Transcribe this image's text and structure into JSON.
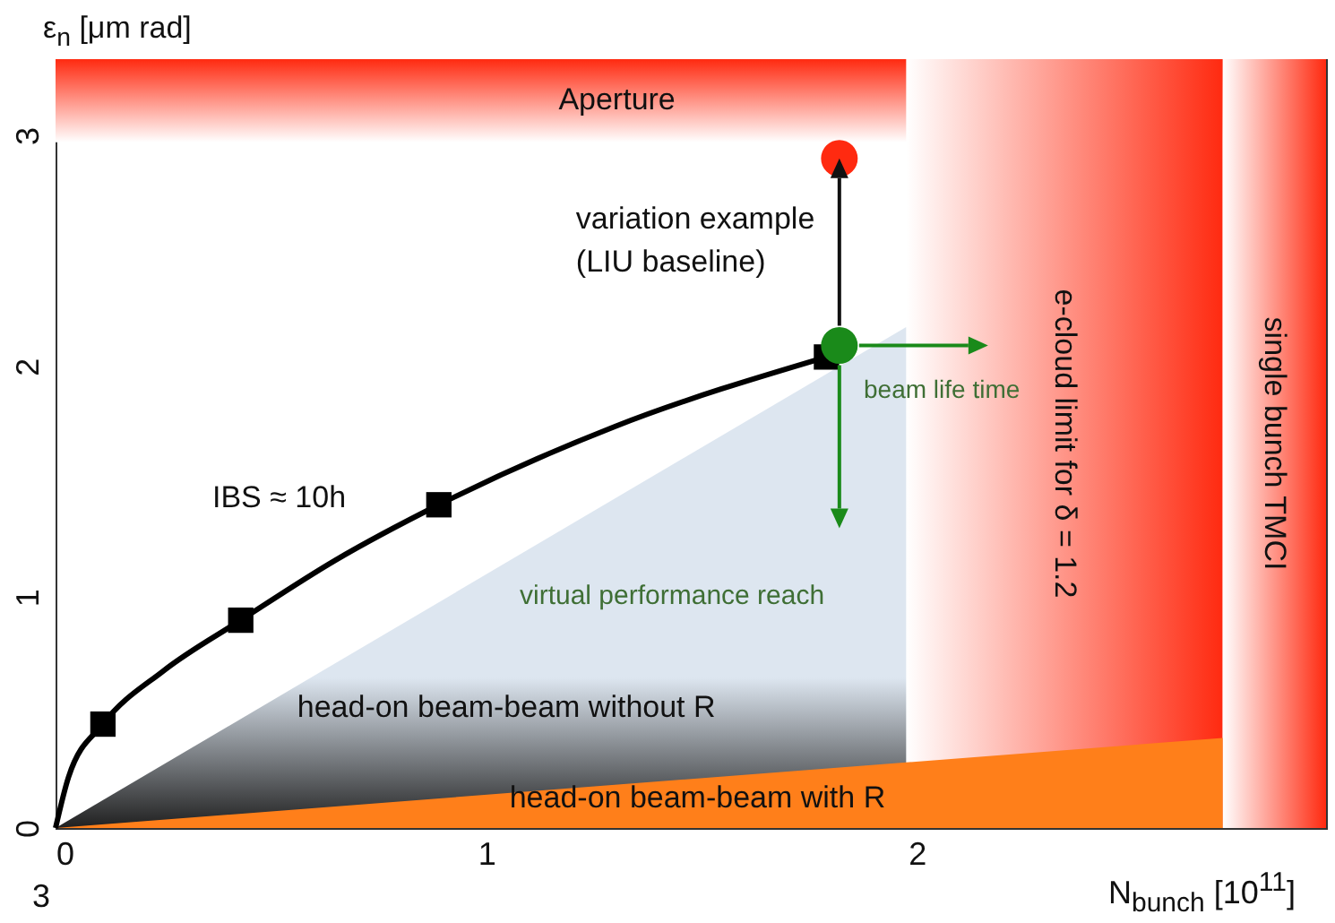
{
  "chart_data": {
    "type": "line",
    "xlabel": "N$_{bunch}$ [10$^{11}$]",
    "ylabel": "ε$_{n}$ [μm rad]",
    "xlim": [
      0,
      2.95
    ],
    "ylim": [
      0,
      3.33
    ],
    "xticks": [
      0,
      1,
      2
    ],
    "yticks": [
      0,
      1,
      2,
      3
    ],
    "grid": false,
    "legend": false,
    "bands": [
      {
        "axis": "y",
        "from": 2.97,
        "to": 3.33,
        "label": "Aperture",
        "color": "#ff2a10"
      },
      {
        "axis": "x",
        "from": 1.975,
        "to": 2.71,
        "label": "e-cloud limit for δ = 1.2",
        "color": "#ff2a10"
      },
      {
        "axis": "x",
        "from": 2.71,
        "to": 2.95,
        "label": "single bunch TMCI",
        "color": "#ff2a10"
      }
    ],
    "series": [
      {
        "name": "head-on beam-beam without R",
        "type": "area",
        "color": "#dde6f0",
        "x": [
          0,
          1.975
        ],
        "values": [
          0,
          2.17
        ]
      },
      {
        "name": "head-on beam-beam with R",
        "type": "area",
        "color": "#ff7f1a",
        "x": [
          0,
          2.71
        ],
        "values": [
          0,
          0.39
        ]
      },
      {
        "name": "IBS ≈ 10h",
        "type": "line",
        "color": "#000000",
        "x": [
          0,
          0.03,
          0.11,
          0.25,
          0.43,
          0.65,
          0.89,
          1.3,
          1.79
        ],
        "values": [
          0,
          0.22,
          0.45,
          0.68,
          0.9,
          1.16,
          1.4,
          1.74,
          2.04
        ]
      },
      {
        "type": "scatter",
        "marker": "square",
        "color": "#000000",
        "x": [
          0.11,
          0.43,
          0.89,
          1.79
        ],
        "values": [
          0.45,
          0.9,
          1.4,
          2.04
        ]
      },
      {
        "type": "scatter",
        "marker": "circle",
        "color": "#1a8a1a",
        "x": [
          1.82
        ],
        "values": [
          2.09
        ]
      },
      {
        "type": "scatter",
        "marker": "circle",
        "color": "#ff2a10",
        "x": [
          1.82
        ],
        "values": [
          2.9
        ]
      }
    ],
    "annotations": [
      {
        "text": "variation example\n(LIU baseline)",
        "x": 1.82,
        "y": 2.9
      },
      "beam life time",
      "virtual performance reach",
      "3"
    ]
  }
}
